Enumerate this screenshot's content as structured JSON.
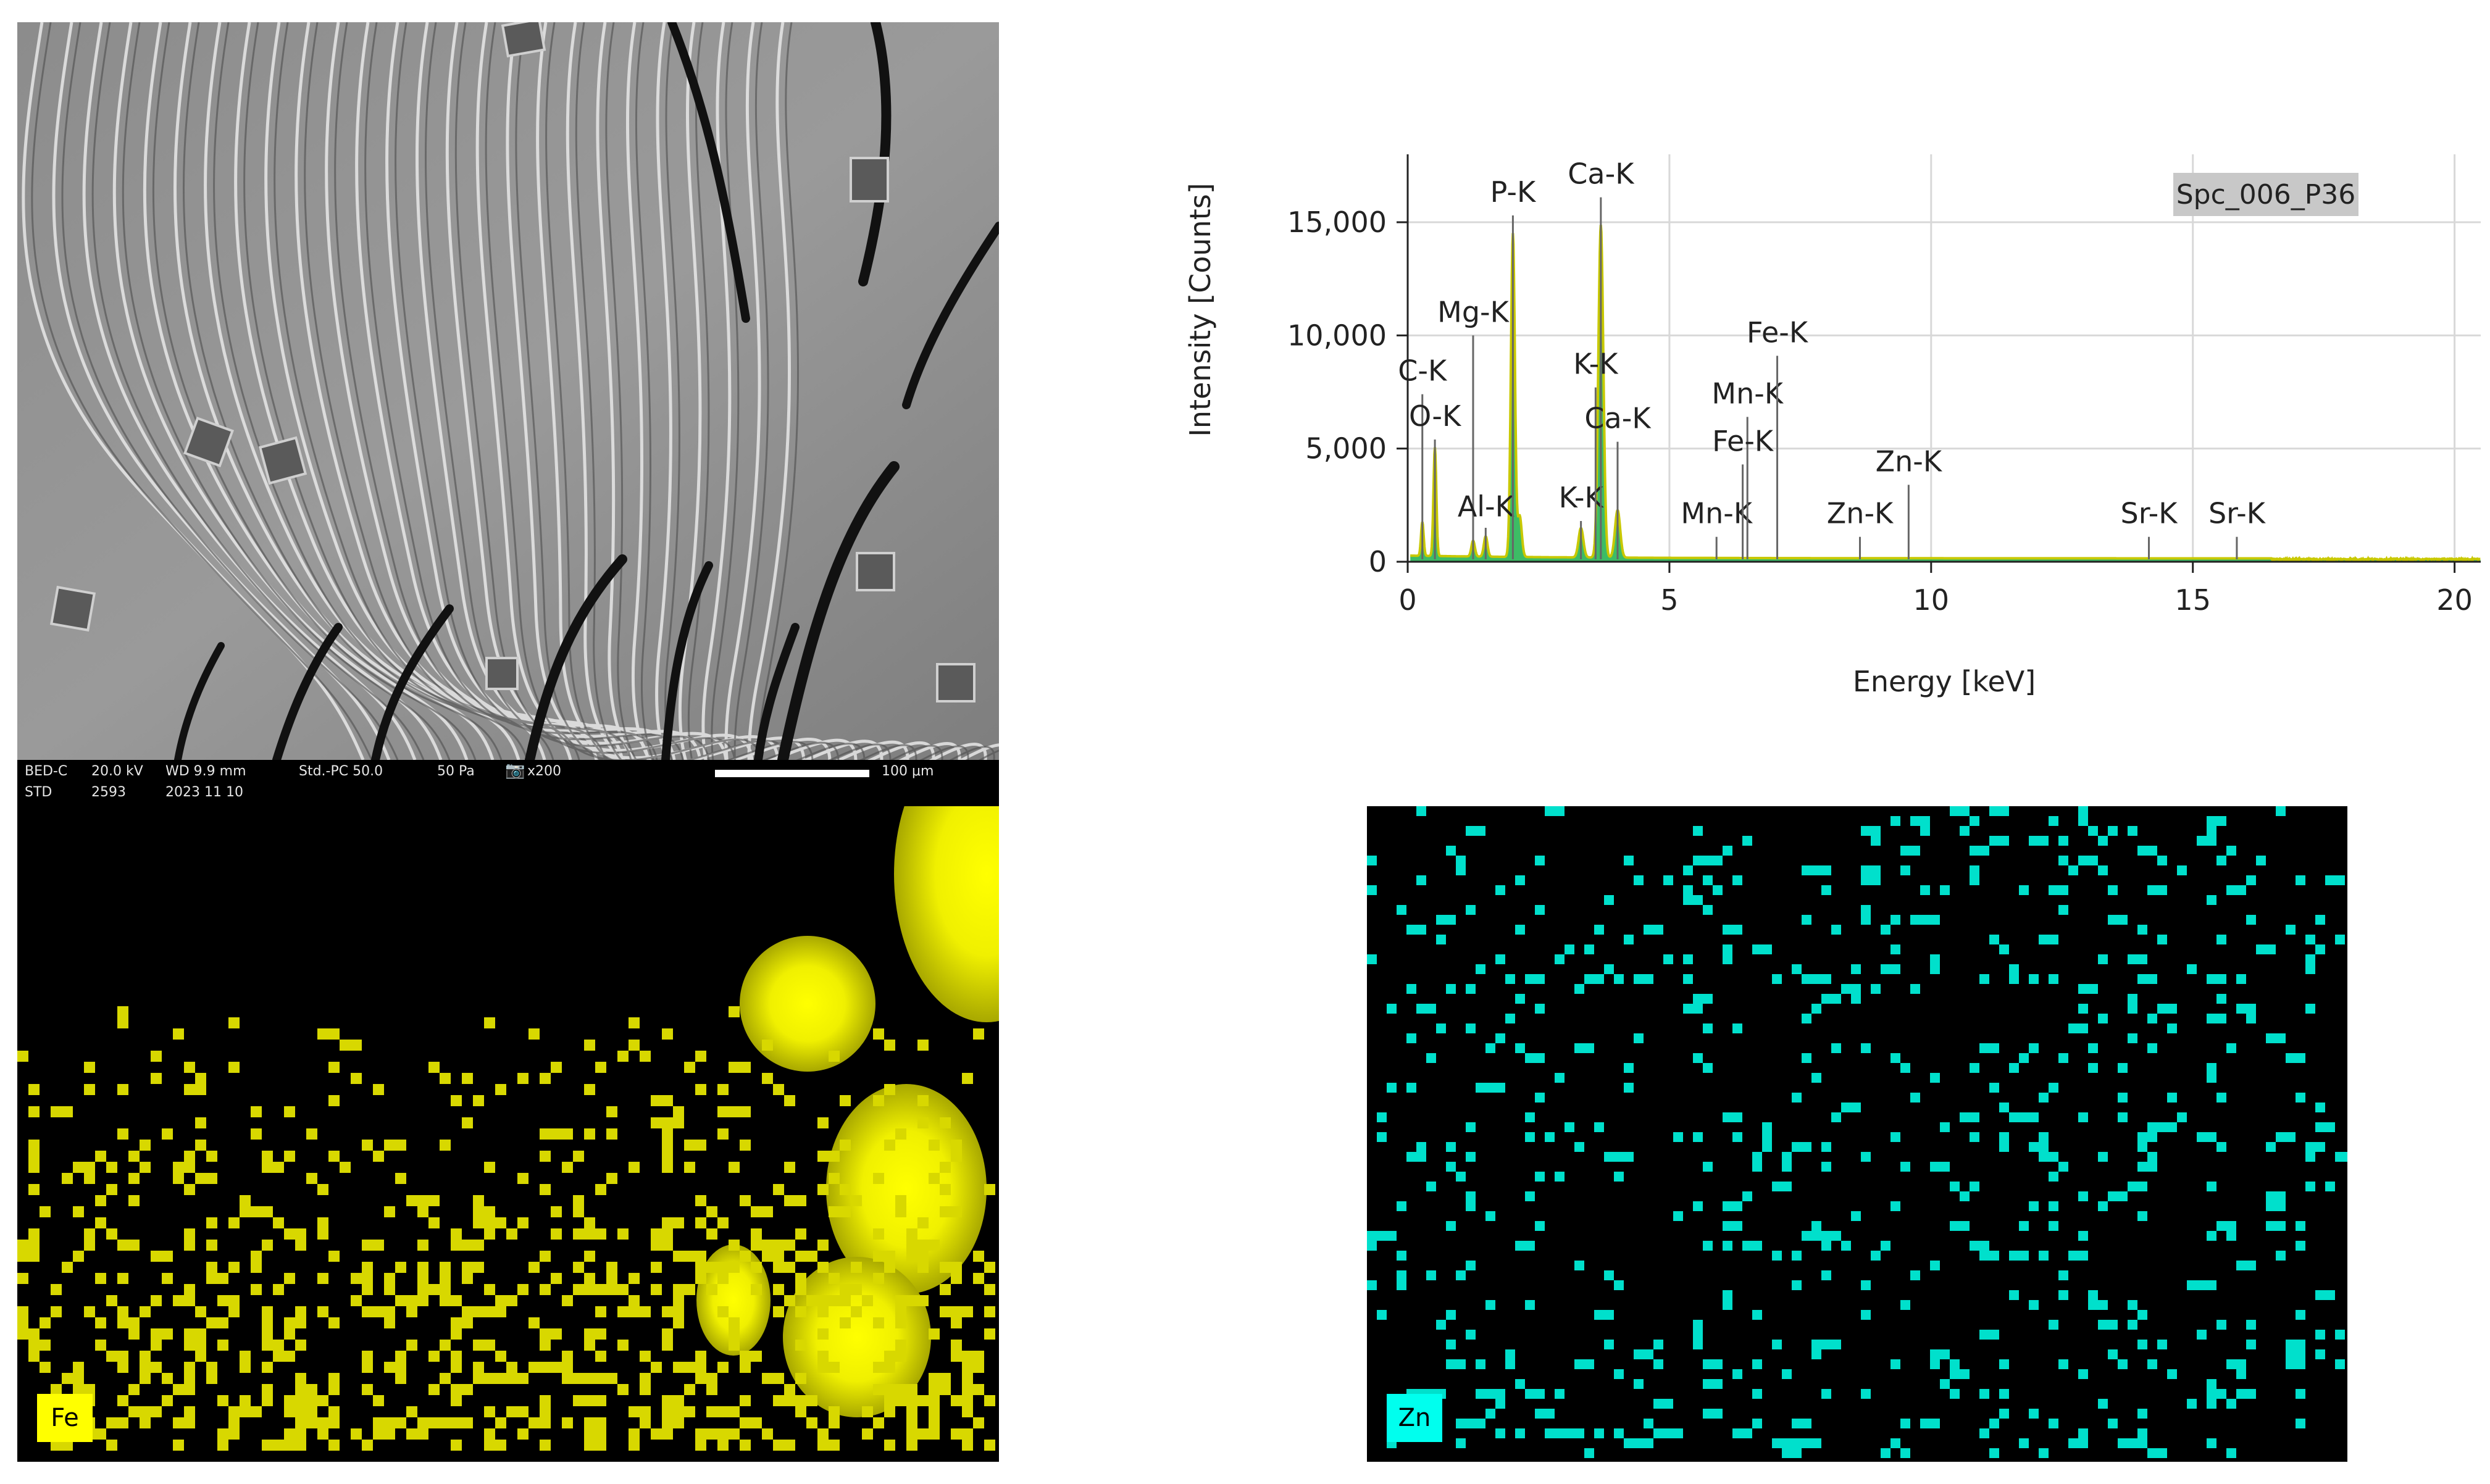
{
  "sem": {
    "info_row1": [
      "BED-C",
      "20.0 kV",
      "WD 9.9 mm",
      "Std.-PC 50.0",
      "50 Pa",
      "x200"
    ],
    "info_row2": [
      "STD",
      "2593",
      "2023 11 10"
    ],
    "scalebar_label": "100 μm"
  },
  "maps": {
    "fe": {
      "label": "Fe",
      "color": "#d8d800",
      "bright_color": "#ffff00"
    },
    "zn": {
      "label": "Zn",
      "color": "#00e0cc"
    }
  },
  "chart_data": {
    "type": "line",
    "legend_box": "Spc_006_P36",
    "xlabel": "Energy [keV]",
    "ylabel": "Intensity [Counts]",
    "xlim": [
      0,
      20.5
    ],
    "ylim": [
      0,
      18000
    ],
    "x_ticks": [
      0,
      5,
      10,
      15,
      20
    ],
    "y_ticks": [
      0,
      5000,
      10000,
      15000
    ],
    "y_tick_labels": [
      "0",
      "5,000",
      "10,000",
      "15,000"
    ],
    "grid": true,
    "colors": {
      "spectrum": "#c8c800",
      "fill": "#1bb04a"
    },
    "spectrum_peaks": [
      {
        "x": 0.28,
        "y": 1500
      },
      {
        "x": 0.52,
        "y": 4800
      },
      {
        "x": 1.25,
        "y": 700
      },
      {
        "x": 1.49,
        "y": 900
      },
      {
        "x": 2.01,
        "y": 14300
      },
      {
        "x": 2.14,
        "y": 1800
      },
      {
        "x": 3.31,
        "y": 1300
      },
      {
        "x": 3.69,
        "y": 14700
      },
      {
        "x": 4.01,
        "y": 2100
      }
    ],
    "peak_labels": [
      {
        "label": "C-K",
        "x": 0.28,
        "y": 8000,
        "line_top": 7400
      },
      {
        "label": "O-K",
        "x": 0.52,
        "y": 6000,
        "line_top": 5400
      },
      {
        "label": "Mg-K",
        "x": 1.25,
        "y": 10600,
        "line_top": 10000
      },
      {
        "label": "Al-K",
        "x": 1.49,
        "y": 2000,
        "line_top": 1500
      },
      {
        "label": "P-K",
        "x": 2.01,
        "y": 15900,
        "line_top": 15300
      },
      {
        "label": "K-K",
        "x": 3.31,
        "y": 2400,
        "line_top": 1800
      },
      {
        "label": "K-K",
        "x": 3.59,
        "y": 8300,
        "line_top": 7700
      },
      {
        "label": "Ca-K",
        "x": 3.69,
        "y": 16700,
        "line_top": 16100
      },
      {
        "label": "Ca-K",
        "x": 4.01,
        "y": 5900,
        "line_top": 5300
      },
      {
        "label": "Mn-K",
        "x": 5.9,
        "y": 1700,
        "line_top": 1100
      },
      {
        "label": "Mn-K",
        "x": 6.49,
        "y": 7000,
        "line_top": 6400
      },
      {
        "label": "Fe-K",
        "x": 6.4,
        "y": 4900,
        "line_top": 4300
      },
      {
        "label": "Fe-K",
        "x": 7.06,
        "y": 9700,
        "line_top": 9100
      },
      {
        "label": "Zn-K",
        "x": 8.64,
        "y": 1700,
        "line_top": 1100
      },
      {
        "label": "Zn-K",
        "x": 9.57,
        "y": 4000,
        "line_top": 3400
      },
      {
        "label": "Sr-K",
        "x": 14.16,
        "y": 1700,
        "line_top": 1100
      },
      {
        "label": "Sr-K",
        "x": 15.84,
        "y": 1700,
        "line_top": 1100
      }
    ]
  }
}
